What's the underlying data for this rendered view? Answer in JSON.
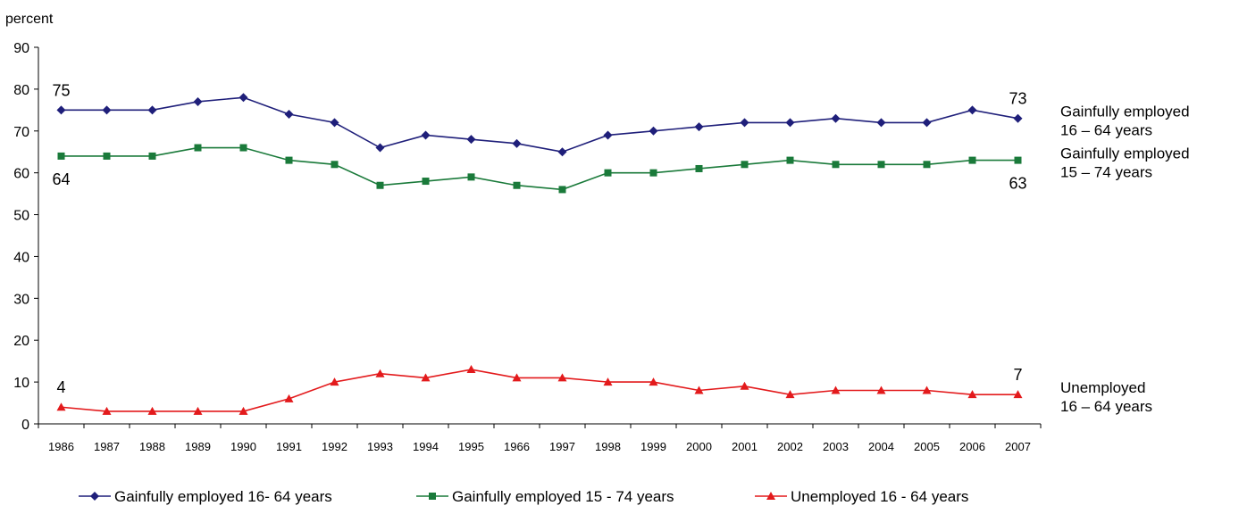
{
  "chart_data": {
    "type": "line",
    "title": "",
    "xlabel": "",
    "ylabel": "percent",
    "ylim": [
      0,
      90
    ],
    "yticks": [
      0,
      10,
      20,
      30,
      40,
      50,
      60,
      70,
      80,
      90
    ],
    "grid": false,
    "legend_position": "bottom",
    "categories": [
      "1986",
      "1987",
      "1988",
      "1989",
      "1990",
      "1991",
      "1992",
      "1993",
      "1994",
      "1995",
      "1966",
      "1997",
      "1998",
      "1999",
      "2000",
      "2001",
      "2002",
      "2003",
      "2004",
      "2005",
      "2006",
      "2007"
    ],
    "series": [
      {
        "name": "Gainfully employed 16- 64 years",
        "color": "#1f1f7a",
        "marker": "diamond",
        "side_label": [
          "Gainfully employed",
          "16 – 64 years"
        ],
        "values": [
          75,
          75,
          75,
          77,
          78,
          74,
          72,
          66,
          69,
          68,
          67,
          65,
          69,
          70,
          71,
          72,
          72,
          73,
          72,
          72,
          75,
          73
        ]
      },
      {
        "name": "Gainfully employed 15 - 74 years",
        "color": "#1a7a3a",
        "marker": "square",
        "side_label": [
          "Gainfully employed",
          "15 – 74 years"
        ],
        "values": [
          64,
          64,
          64,
          66,
          66,
          63,
          62,
          57,
          58,
          59,
          57,
          56,
          60,
          60,
          61,
          62,
          63,
          62,
          62,
          62,
          63,
          63
        ]
      },
      {
        "name": "Unemployed 16 - 64 years",
        "color": "#e31a1c",
        "marker": "triangle",
        "side_label": [
          "Unemployed",
          "16 – 64 years"
        ],
        "values": [
          4,
          3,
          3,
          3,
          3,
          6,
          10,
          12,
          11,
          13,
          11,
          11,
          10,
          10,
          8,
          9,
          7,
          8,
          8,
          8,
          7,
          7
        ]
      }
    ],
    "annotations": [
      {
        "text": "75",
        "series": 0,
        "index": 0,
        "pos": "above"
      },
      {
        "text": "64",
        "series": 1,
        "index": 0,
        "pos": "below"
      },
      {
        "text": "4",
        "series": 2,
        "index": 0,
        "pos": "above"
      },
      {
        "text": "73",
        "series": 0,
        "index": 21,
        "pos": "above"
      },
      {
        "text": "63",
        "series": 1,
        "index": 21,
        "pos": "below"
      },
      {
        "text": "7",
        "series": 2,
        "index": 21,
        "pos": "above"
      }
    ]
  }
}
